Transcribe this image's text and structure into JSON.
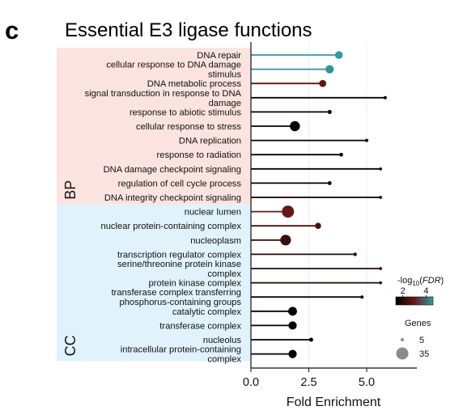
{
  "panel_letter": "c",
  "chart_data": {
    "type": "lollipop",
    "title": "Essential E3 ligase functions",
    "xlabel": "Fold Enrichment",
    "xlim": [
      0,
      7
    ],
    "xticks": [
      "0.0",
      "2.5",
      "5.0"
    ],
    "xtick_values": [
      0,
      2.5,
      5
    ],
    "groups": [
      {
        "name": "BP",
        "color": "#fbe3df",
        "first": 0,
        "last": 10
      },
      {
        "name": "CC",
        "color": "#e0f2fb",
        "first": 11,
        "last": 21
      }
    ],
    "terms": [
      {
        "label": "DNA repair",
        "group": "BP",
        "fold": 3.8,
        "genes": 20,
        "log_fdr": 4.6
      },
      {
        "label": "cellular response to DNA damage stimulus",
        "group": "BP",
        "fold": 3.4,
        "genes": 22,
        "log_fdr": 4.5
      },
      {
        "label": "DNA metabolic process",
        "group": "BP",
        "fold": 3.1,
        "genes": 18,
        "log_fdr": 2.8
      },
      {
        "label": "signal transduction in response to DNA damage",
        "group": "BP",
        "fold": 5.8,
        "genes": 5,
        "log_fdr": 1.6
      },
      {
        "label": "response to abiotic stimulus",
        "group": "BP",
        "fold": 3.4,
        "genes": 8,
        "log_fdr": 1.5
      },
      {
        "label": "cellular response to stress",
        "group": "BP",
        "fold": 1.9,
        "genes": 28,
        "log_fdr": 1.5
      },
      {
        "label": "DNA replication",
        "group": "BP",
        "fold": 5.0,
        "genes": 5,
        "log_fdr": 1.5
      },
      {
        "label": "response to radiation",
        "group": "BP",
        "fold": 3.9,
        "genes": 7,
        "log_fdr": 1.5
      },
      {
        "label": "DNA damage checkpoint signaling",
        "group": "BP",
        "fold": 5.6,
        "genes": 4,
        "log_fdr": 1.4
      },
      {
        "label": "regulation of cell cycle process",
        "group": "BP",
        "fold": 3.4,
        "genes": 7,
        "log_fdr": 1.4
      },
      {
        "label": "DNA integrity checkpoint signaling",
        "group": "BP",
        "fold": 5.6,
        "genes": 4,
        "log_fdr": 1.4
      },
      {
        "label": "nuclear lumen",
        "group": "CC",
        "fold": 1.6,
        "genes": 35,
        "log_fdr": 2.9
      },
      {
        "label": "nuclear protein-containing complex",
        "group": "CC",
        "fold": 2.9,
        "genes": 15,
        "log_fdr": 2.5
      },
      {
        "label": "nucleoplasm",
        "group": "CC",
        "fold": 1.5,
        "genes": 30,
        "log_fdr": 2.3
      },
      {
        "label": "transcription regulator complex",
        "group": "CC",
        "fold": 4.5,
        "genes": 6,
        "log_fdr": 2.0
      },
      {
        "label": "serine/threonine protein kinase complex",
        "group": "CC",
        "fold": 5.6,
        "genes": 4,
        "log_fdr": 1.9
      },
      {
        "label": "protein kinase complex",
        "group": "CC",
        "fold": 5.6,
        "genes": 4,
        "log_fdr": 1.8
      },
      {
        "label": "transferase complex transferring phosphorus-containing groups",
        "group": "CC",
        "fold": 4.8,
        "genes": 5,
        "log_fdr": 1.7
      },
      {
        "label": "catalytic complex",
        "group": "CC",
        "fold": 1.8,
        "genes": 24,
        "log_fdr": 1.5
      },
      {
        "label": "transferase complex",
        "group": "CC",
        "fold": 1.8,
        "genes": 22,
        "log_fdr": 1.5
      },
      {
        "label": "nucleolus",
        "group": "CC",
        "fold": 2.6,
        "genes": 8,
        "log_fdr": 1.4
      },
      {
        "label": "intracellular protein-containing complex",
        "group": "CC",
        "fold": 1.8,
        "genes": 22,
        "log_fdr": 1.4
      }
    ],
    "colorbar": {
      "title": "-log10(FDR)",
      "range": [
        1.4,
        4.6
      ],
      "ticks": [
        2,
        4
      ],
      "tick_labels": [
        "2",
        "4"
      ],
      "colors": [
        "#000000",
        "#6e1717",
        "#2e9ca3"
      ]
    },
    "size_legend": {
      "title": "Genes",
      "entries": [
        {
          "value": 5,
          "label": "5"
        },
        {
          "value": 35,
          "label": "35"
        }
      ]
    }
  }
}
